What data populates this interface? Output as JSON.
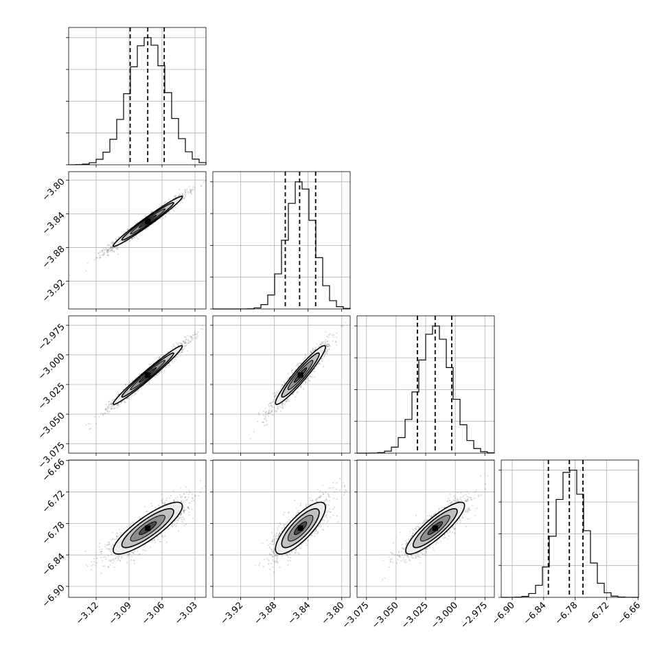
{
  "chart_data": {
    "type": "scatter",
    "parameters": [
      {
        "mean": -3.073,
        "sd": 0.0175,
        "range": [
          -3.145,
          -3.02
        ],
        "ticks": [
          "−3.12",
          "−3.09",
          "−3.06",
          "−3.03"
        ],
        "tick_values": [
          -3.12,
          -3.09,
          -3.06,
          -3.03
        ],
        "quantiles": [
          -3.089,
          -3.073,
          -3.058
        ]
      },
      {
        "mean": -3.849,
        "sd": 0.0165,
        "range": [
          -3.953,
          -3.79
        ],
        "ticks": [
          "−3.92",
          "−3.88",
          "−3.84",
          "−3.80"
        ],
        "tick_values": [
          -3.92,
          -3.88,
          -3.84,
          -3.8
        ],
        "quantiles": [
          -3.867,
          -3.85,
          -3.831
        ]
      },
      {
        "mean": -3.017,
        "sd": 0.0138,
        "range": [
          -3.083,
          -2.967
        ],
        "ticks": [
          "−3.075",
          "−3.050",
          "−3.025",
          "−3.000",
          "−2.975"
        ],
        "tick_values": [
          -3.075,
          -3.05,
          -3.025,
          -3.0,
          -2.975
        ],
        "quantiles": [
          -3.032,
          -3.017,
          -3.003
        ]
      },
      {
        "mean": -6.789,
        "sd": 0.0275,
        "range": [
          -6.921,
          -6.659
        ],
        "ticks": [
          "−6.90",
          "−6.84",
          "−6.78",
          "−6.72",
          "−6.66"
        ],
        "tick_values": [
          -6.9,
          -6.84,
          -6.78,
          -6.72,
          -6.66
        ],
        "quantiles": [
          -6.831,
          -6.791,
          -6.765
        ]
      }
    ],
    "correlations": [
      [
        1.0,
        0.98,
        0.98,
        0.85
      ],
      [
        0.98,
        1.0,
        0.95,
        0.8
      ],
      [
        0.98,
        0.95,
        1.0,
        0.87
      ],
      [
        0.85,
        0.8,
        0.87,
        1.0
      ]
    ],
    "histogram_bins": 20,
    "quantile_levels": [
      0.16,
      0.5,
      0.84
    ],
    "grid": true,
    "legend": "none"
  }
}
